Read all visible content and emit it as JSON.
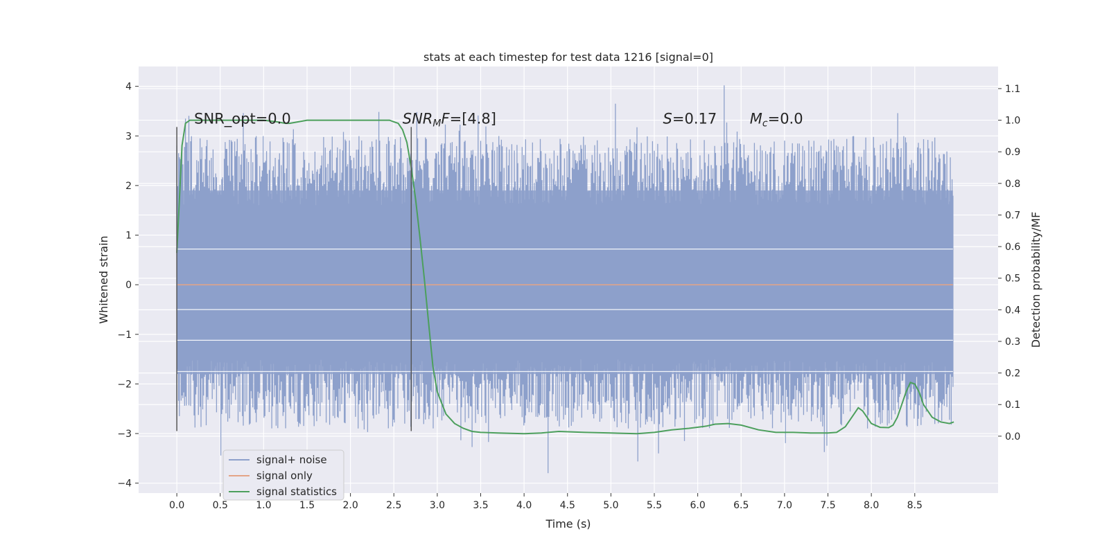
{
  "chart_data": {
    "type": "line",
    "title": "stats at each timestep for test data 1216 [signal=0]",
    "xlabel": "Time (s)",
    "ylabel": "Whitened strain",
    "y2label": "Detection probability/MF",
    "xlim": [
      -0.44,
      9.46
    ],
    "ylim": [
      -4.2,
      4.4
    ],
    "y2lim": [
      -0.18,
      1.17
    ],
    "x_ticks": [
      0.0,
      0.5,
      1.0,
      1.5,
      2.0,
      2.5,
      3.0,
      3.5,
      4.0,
      4.5,
      5.0,
      5.5,
      6.0,
      6.5,
      7.0,
      7.5,
      8.0,
      8.5
    ],
    "x_tick_labels": [
      "0.0",
      "0.5",
      "1.0",
      "1.5",
      "2.0",
      "2.5",
      "3.0",
      "3.5",
      "4.0",
      "4.5",
      "5.0",
      "5.5",
      "6.0",
      "6.5",
      "7.0",
      "7.5",
      "8.0",
      "8.5"
    ],
    "y_ticks": [
      4,
      3,
      2,
      1,
      0,
      -1,
      -2,
      -3,
      -4
    ],
    "y_tick_labels": [
      "4",
      "3",
      "2",
      "1",
      "0",
      "−1",
      "−2",
      "−3",
      "−4"
    ],
    "y2_ticks": [
      1.1,
      1.0,
      0.9,
      0.8,
      0.7,
      0.6,
      0.5,
      0.4,
      0.3,
      0.2,
      0.1,
      0.0
    ],
    "y2_tick_labels": [
      "1.1",
      "1.0",
      "0.9",
      "0.8",
      "0.7",
      "0.6",
      "0.5",
      "0.4",
      "0.3",
      "0.2",
      "0.1",
      "0.0"
    ],
    "grid": true,
    "legend_position": "lower-left",
    "noise": {
      "t_start": 0.0,
      "t_end": 8.94,
      "band_min": -1.8,
      "band_max": 1.9,
      "peak": 4.02,
      "trough": -3.8
    },
    "series": [
      {
        "name": "signal+ noise",
        "color": "#8da0cb",
        "kind": "noise"
      },
      {
        "name": "signal only",
        "color": "#e4a486",
        "kind": "flat",
        "x": [
          0.0,
          8.94
        ],
        "y": [
          0.0,
          0.0
        ]
      },
      {
        "name": "signal statistics",
        "color": "#4c9f5c",
        "axis": "right",
        "x": [
          0.0,
          0.06,
          0.1,
          0.15,
          0.2,
          0.3,
          0.5,
          0.8,
          1.0,
          1.15,
          1.25,
          1.3,
          1.4,
          1.5,
          1.7,
          2.0,
          2.3,
          2.45,
          2.5,
          2.55,
          2.6,
          2.65,
          2.7,
          2.75,
          2.8,
          2.85,
          2.9,
          2.95,
          3.0,
          3.1,
          3.2,
          3.3,
          3.4,
          3.5,
          3.7,
          4.0,
          4.2,
          4.4,
          4.7,
          5.0,
          5.3,
          5.5,
          5.7,
          5.9,
          6.1,
          6.2,
          6.35,
          6.5,
          6.7,
          6.9,
          7.1,
          7.3,
          7.5,
          7.6,
          7.7,
          7.8,
          7.85,
          7.9,
          8.0,
          8.1,
          8.2,
          8.25,
          8.3,
          8.35,
          8.4,
          8.45,
          8.5,
          8.55,
          8.6,
          8.7,
          8.8,
          8.9,
          8.95
        ],
        "y": [
          0.58,
          0.92,
          0.99,
          1.0,
          1.0,
          1.0,
          1.0,
          1.0,
          1.0,
          0.995,
          0.99,
          0.99,
          0.995,
          1.0,
          1.0,
          1.0,
          1.0,
          1.0,
          0.995,
          0.99,
          0.97,
          0.93,
          0.85,
          0.75,
          0.63,
          0.5,
          0.36,
          0.22,
          0.14,
          0.07,
          0.04,
          0.025,
          0.015,
          0.012,
          0.01,
          0.008,
          0.01,
          0.015,
          0.012,
          0.01,
          0.008,
          0.012,
          0.02,
          0.025,
          0.032,
          0.038,
          0.04,
          0.035,
          0.02,
          0.012,
          0.012,
          0.01,
          0.01,
          0.012,
          0.03,
          0.07,
          0.09,
          0.08,
          0.04,
          0.028,
          0.027,
          0.035,
          0.06,
          0.1,
          0.14,
          0.17,
          0.165,
          0.14,
          0.1,
          0.06,
          0.045,
          0.04,
          0.045
        ]
      }
    ],
    "vlines": [
      {
        "x": 0.0,
        "y_from": -2.95,
        "y_to": 3.18
      },
      {
        "x": 2.7,
        "y_from": -2.95,
        "y_to": 3.18
      }
    ],
    "annotations": [
      {
        "x": 0.2,
        "y": 3.25,
        "parts": [
          {
            "text": "SNR_opt=0.0",
            "style": "normal"
          }
        ]
      },
      {
        "x": 2.6,
        "y": 3.25,
        "parts": [
          {
            "text": "SNR",
            "style": "italic"
          },
          {
            "text": "M",
            "style": "italic-sub"
          },
          {
            "text": "F",
            "style": "italic"
          },
          {
            "text": "=[4.8]",
            "style": "normal"
          }
        ]
      },
      {
        "x": 5.6,
        "y": 3.25,
        "parts": [
          {
            "text": "S",
            "style": "italic"
          },
          {
            "text": "=0.17",
            "style": "normal"
          }
        ]
      },
      {
        "x": 6.6,
        "y": 3.25,
        "parts": [
          {
            "text": "M",
            "style": "italic"
          },
          {
            "text": "c",
            "style": "italic-sub"
          },
          {
            "text": "=0.0",
            "style": "normal"
          }
        ]
      }
    ]
  }
}
